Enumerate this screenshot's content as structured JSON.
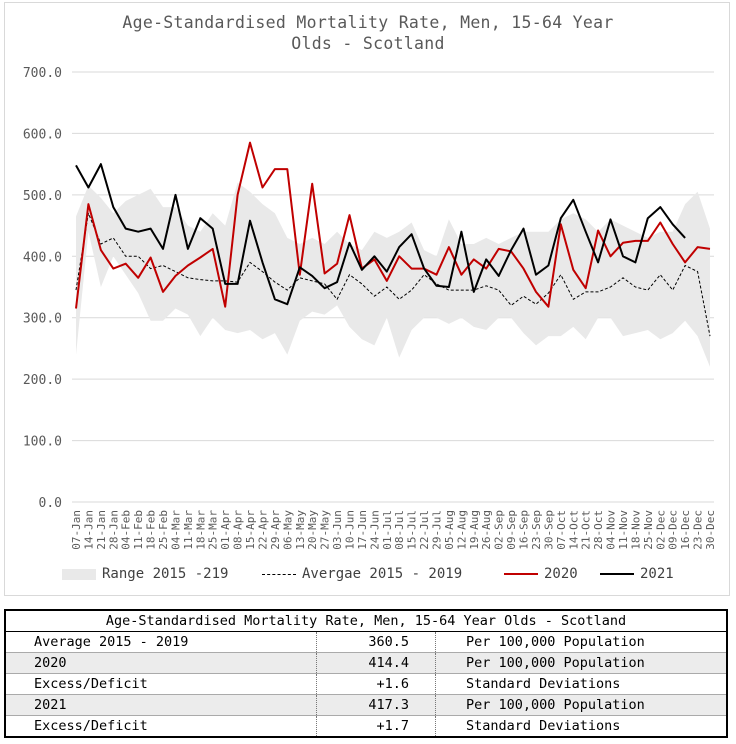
{
  "chart_data": {
    "type": "line",
    "title_lines": [
      "Age-Standardised Mortality Rate, Men, 15-64 Year",
      "Olds - Scotland"
    ],
    "ylim": [
      0,
      700
    ],
    "yticks": [
      "0.0",
      "100.0",
      "200.0",
      "300.0",
      "400.0",
      "500.0",
      "600.0",
      "700.0"
    ],
    "categories": [
      "07-Jan",
      "14-Jan",
      "21-Jan",
      "28-Jan",
      "04-Feb",
      "11-Feb",
      "18-Feb",
      "25-Feb",
      "04-Mar",
      "11-Mar",
      "18-Mar",
      "25-Mar",
      "01-Apr",
      "08-Apr",
      "15-Apr",
      "22-Apr",
      "29-Apr",
      "06-May",
      "13-May",
      "20-May",
      "27-May",
      "03-Jun",
      "10-Jun",
      "17-Jun",
      "24-Jun",
      "01-Jul",
      "08-Jul",
      "15-Jul",
      "22-Jul",
      "29-Jul",
      "05-Aug",
      "12-Aug",
      "19-Aug",
      "26-Aug",
      "02-Sep",
      "09-Sep",
      "16-Sep",
      "23-Sep",
      "30-Sep",
      "07-Oct",
      "14-Oct",
      "21-Oct",
      "28-Oct",
      "04-Nov",
      "11-Nov",
      "18-Nov",
      "25-Nov",
      "02-Dec",
      "09-Dec",
      "16-Dec",
      "23-Dec",
      "30-Dec"
    ],
    "xtick_labels": [
      "07-Jan",
      "14-Jan",
      "21-Jan",
      "28-Jan",
      "04-Feb",
      "11-Feb",
      "18-Feb",
      "25-Feb",
      "04-Mar",
      "11-Mar",
      "18-Mar",
      "25-Mar",
      "01-Apr",
      "08-Apr",
      "15-Apr",
      "22-Apr",
      "29-Apr",
      "06-May",
      "13-May",
      "20-May",
      "27-May",
      "03-Jun",
      "10-Jun",
      "17-Jun",
      "24-Jun",
      "01-Jul",
      "08-Jul",
      "15-Jul",
      "22-Jul",
      "29-Jul",
      "05-Aug",
      "12-Aug",
      "19-Aug",
      "26-Aug",
      "02-Sep",
      "09-Sep",
      "16-Sep",
      "23-Sep",
      "30-Sep",
      "07-Oct",
      "14-Oct",
      "21-Oct",
      "28-Oct",
      "04-Nov",
      "11-Nov",
      "18-Nov",
      "25-Nov",
      "02-Dec",
      "09-Dec",
      "16-Dec",
      "23-Dec",
      "30-Dec"
    ],
    "range": {
      "name": "Range 2015 -219",
      "color": "#e9e9e9",
      "low": [
        240,
        440,
        350,
        400,
        370,
        340,
        295,
        295,
        315,
        305,
        270,
        300,
        280,
        275,
        280,
        265,
        275,
        240,
        295,
        310,
        305,
        320,
        285,
        265,
        255,
        300,
        235,
        280,
        300,
        300,
        290,
        300,
        285,
        280,
        300,
        300,
        275,
        255,
        270,
        270,
        285,
        265,
        300,
        300,
        270,
        275,
        280,
        265,
        275,
        295,
        270,
        220
      ],
      "high": [
        465,
        515,
        495,
        470,
        490,
        500,
        510,
        480,
        480,
        450,
        440,
        470,
        450,
        520,
        505,
        485,
        470,
        430,
        420,
        430,
        420,
        440,
        420,
        410,
        440,
        430,
        440,
        455,
        410,
        400,
        460,
        420,
        420,
        430,
        420,
        430,
        440,
        440,
        440,
        460,
        470,
        460,
        440,
        460,
        450,
        440,
        430,
        440,
        440,
        485,
        505,
        445
      ]
    },
    "series": [
      {
        "name": "Avergae 2015 - 2019",
        "color": "#000000",
        "dash": "3,2",
        "width": 1,
        "values": [
          345,
          470,
          420,
          430,
          400,
          400,
          380,
          385,
          375,
          365,
          362,
          360,
          360,
          358,
          390,
          375,
          358,
          345,
          365,
          360,
          355,
          330,
          370,
          355,
          335,
          350,
          330,
          345,
          370,
          355,
          345,
          345,
          345,
          352,
          345,
          320,
          335,
          322,
          340,
          370,
          330,
          342,
          342,
          350,
          365,
          350,
          345,
          370,
          345,
          385,
          375,
          270
        ]
      },
      {
        "name": "2020",
        "color": "#c00000",
        "dash": "",
        "width": 2,
        "values": [
          315,
          485,
          410,
          380,
          388,
          365,
          398,
          342,
          368,
          385,
          398,
          412,
          318,
          500,
          585,
          512,
          542,
          542,
          370,
          518,
          372,
          388,
          467,
          380,
          395,
          360,
          400,
          380,
          380,
          370,
          415,
          370,
          395,
          380,
          412,
          408,
          380,
          342,
          318,
          452,
          378,
          348,
          442,
          400,
          422,
          425,
          425,
          455,
          420,
          390,
          415,
          412
        ]
      },
      {
        "name": "2021",
        "color": "#000000",
        "dash": "",
        "width": 2,
        "values": [
          548,
          512,
          550,
          480,
          445,
          440,
          445,
          412,
          500,
          412,
          462,
          445,
          355,
          355,
          458,
          390,
          330,
          322,
          382,
          368,
          348,
          358,
          422,
          378,
          400,
          375,
          415,
          436,
          380,
          352,
          350,
          440,
          342,
          395,
          368,
          410,
          445,
          370,
          385,
          462,
          492,
          440,
          390,
          460,
          400,
          390,
          462,
          480,
          452,
          430,
          null,
          null
        ]
      }
    ],
    "legend": [
      {
        "label": "Range 2015 -219",
        "kind": "area",
        "color": "#e9e9e9"
      },
      {
        "label": "Avergae 2015 - 2019",
        "kind": "dashed",
        "color": "#000000"
      },
      {
        "label": "2020",
        "kind": "line",
        "color": "#c00000"
      },
      {
        "label": "2021",
        "kind": "line",
        "color": "#000000"
      }
    ],
    "legend_position": "bottom",
    "grid": true
  },
  "table": {
    "title": "Age-Standardised Mortality Rate, Men, 15-64 Year Olds - Scotland",
    "rows": [
      {
        "label": "Average 2015 - 2019",
        "value": "360.5",
        "unit": "Per 100,000 Population"
      },
      {
        "label": "2020",
        "value": "414.4",
        "unit": "Per 100,000 Population"
      },
      {
        "label": "Excess/Deficit",
        "value": "+1.6",
        "unit": "Standard Deviations"
      },
      {
        "label": "2021",
        "value": "417.3",
        "unit": "Per 100,000 Population"
      },
      {
        "label": "Excess/Deficit",
        "value": "+1.7",
        "unit": "Standard Deviations"
      }
    ]
  }
}
